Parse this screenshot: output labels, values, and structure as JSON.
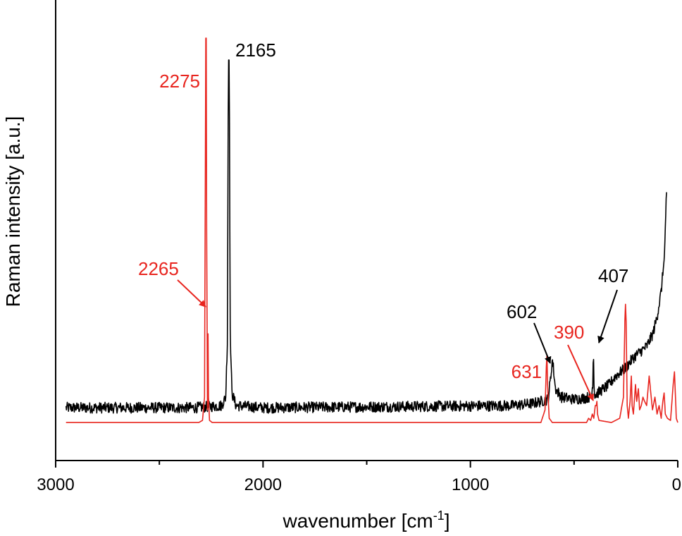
{
  "chart_data": {
    "type": "line",
    "title": "",
    "xlabel": "wavenumber [cm",
    "xlabel_sup": "-1",
    "xlabel_end": "]",
    "ylabel": "Raman intensity [a.u.]",
    "xlim": [
      3000,
      0
    ],
    "x_reversed": true,
    "x_ticks": [
      3000,
      2000,
      1000,
      0
    ],
    "x_tick_labels": [
      "3000",
      "2000",
      "1000",
      "0"
    ],
    "ylim": [
      0,
      100
    ],
    "y_ticks_shown": false,
    "grid": false,
    "legend": "none",
    "series": [
      {
        "color": "#000000",
        "baseline": 12.5,
        "noise": 1.3,
        "noise_range": [
          70,
          2950
        ],
        "points": [
          [
            2950,
            12.5
          ],
          [
            2330,
            12.5
          ],
          [
            2200,
            13
          ],
          [
            2180,
            15
          ],
          [
            2172,
            28
          ],
          [
            2167,
            95
          ],
          [
            2163,
            95
          ],
          [
            2158,
            30
          ],
          [
            2150,
            16
          ],
          [
            2130,
            13
          ],
          [
            2000,
            12.5
          ],
          [
            800,
            13
          ],
          [
            700,
            13.5
          ],
          [
            660,
            14
          ],
          [
            625,
            14.5
          ],
          [
            612,
            20
          ],
          [
            605,
            24
          ],
          [
            600,
            22
          ],
          [
            590,
            17
          ],
          [
            560,
            15
          ],
          [
            500,
            14.5
          ],
          [
            450,
            14.8
          ],
          [
            415,
            15.2
          ],
          [
            409,
            19
          ],
          [
            407,
            29
          ],
          [
            405,
            19
          ],
          [
            400,
            15.5
          ],
          [
            330,
            18
          ],
          [
            300,
            20
          ],
          [
            250,
            22
          ],
          [
            220,
            24
          ],
          [
            200,
            25
          ],
          [
            150,
            27
          ],
          [
            120,
            30
          ],
          [
            100,
            34
          ],
          [
            80,
            40
          ],
          [
            65,
            48
          ],
          [
            58,
            58
          ],
          [
            55,
            64
          ],
          [
            53,
            63
          ]
        ]
      },
      {
        "color": "#e8251f",
        "baseline": 9,
        "noise": 0,
        "points": [
          [
            2950,
            9
          ],
          [
            2310,
            9
          ],
          [
            2292,
            9.5
          ],
          [
            2282,
            15
          ],
          [
            2278,
            70
          ],
          [
            2276,
            100
          ],
          [
            2274,
            100
          ],
          [
            2272,
            55
          ],
          [
            2268,
            12
          ],
          [
            2266,
            20
          ],
          [
            2265,
            30
          ],
          [
            2263,
            15
          ],
          [
            2258,
            9.5
          ],
          [
            2245,
            9
          ],
          [
            660,
            9
          ],
          [
            640,
            12
          ],
          [
            634,
            22
          ],
          [
            631,
            25
          ],
          [
            628,
            18
          ],
          [
            620,
            10
          ],
          [
            605,
            9
          ],
          [
            440,
            9
          ],
          [
            430,
            10
          ],
          [
            420,
            9.5
          ],
          [
            412,
            11
          ],
          [
            405,
            10
          ],
          [
            398,
            13
          ],
          [
            393,
            13
          ],
          [
            390,
            14
          ],
          [
            387,
            11
          ],
          [
            380,
            9.5
          ],
          [
            320,
            9
          ],
          [
            280,
            10
          ],
          [
            262,
            15
          ],
          [
            255,
            33
          ],
          [
            252,
            37
          ],
          [
            249,
            33
          ],
          [
            244,
            13
          ],
          [
            238,
            10
          ],
          [
            230,
            14
          ],
          [
            224,
            20
          ],
          [
            220,
            13
          ],
          [
            214,
            11
          ],
          [
            204,
            18
          ],
          [
            198,
            14
          ],
          [
            190,
            17
          ],
          [
            184,
            12
          ],
          [
            176,
            13
          ],
          [
            168,
            15
          ],
          [
            160,
            14
          ],
          [
            150,
            13
          ],
          [
            138,
            20
          ],
          [
            130,
            16
          ],
          [
            122,
            12
          ],
          [
            110,
            15
          ],
          [
            100,
            11
          ],
          [
            90,
            13
          ],
          [
            80,
            10
          ],
          [
            72,
            14
          ],
          [
            66,
            16
          ],
          [
            60,
            11
          ],
          [
            50,
            10
          ],
          [
            35,
            9.5
          ],
          [
            22,
            18
          ],
          [
            16,
            21
          ],
          [
            12,
            16
          ],
          [
            7,
            10
          ],
          [
            0,
            9
          ]
        ]
      }
    ],
    "annotations": [
      {
        "text": "2165",
        "color": "#000000"
      },
      {
        "text": "2275",
        "color": "#e8251f"
      },
      {
        "text": "2265",
        "color": "#e8251f",
        "arrow": true
      },
      {
        "text": "602",
        "color": "#000000",
        "arrow": true
      },
      {
        "text": "631",
        "color": "#e8251f"
      },
      {
        "text": "390",
        "color": "#e8251f",
        "arrow": true
      },
      {
        "text": "407",
        "color": "#000000",
        "arrow": true
      }
    ]
  }
}
